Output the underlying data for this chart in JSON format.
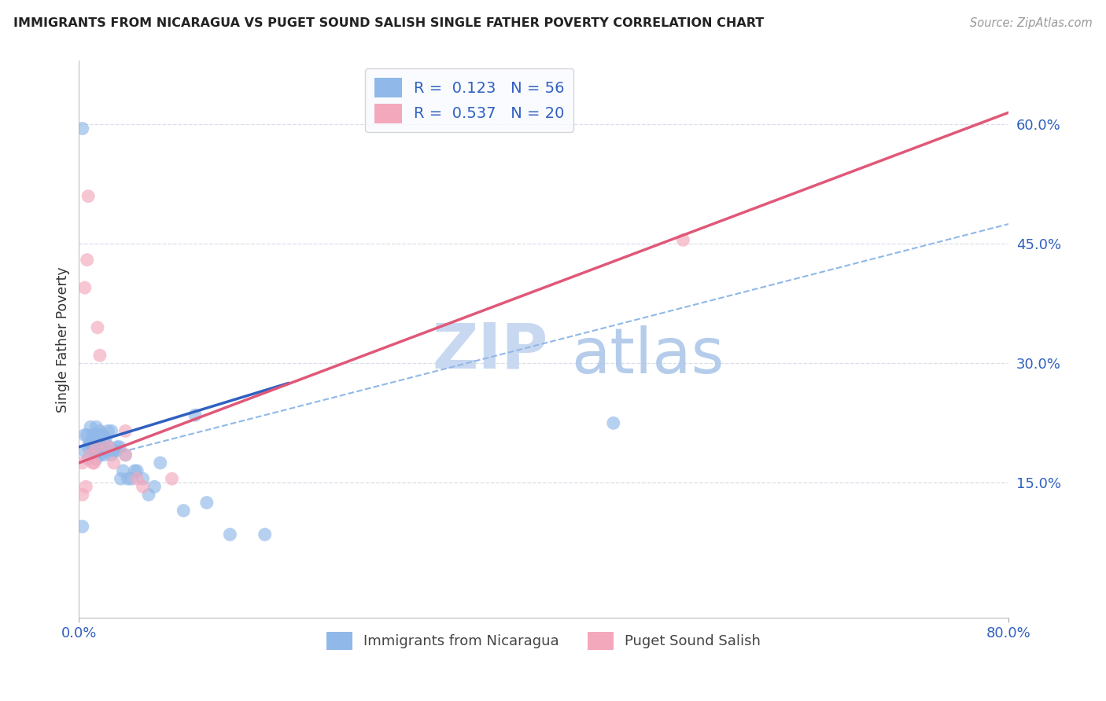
{
  "title": "IMMIGRANTS FROM NICARAGUA VS PUGET SOUND SALISH SINGLE FATHER POVERTY CORRELATION CHART",
  "source": "Source: ZipAtlas.com",
  "ylabel": "Single Father Poverty",
  "xlim": [
    0,
    0.8
  ],
  "ylim": [
    -0.02,
    0.68
  ],
  "xticks": [
    0.0,
    0.8
  ],
  "xticklabels": [
    "0.0%",
    "80.0%"
  ],
  "yticks": [
    0.15,
    0.3,
    0.45,
    0.6
  ],
  "yticklabels": [
    "15.0%",
    "30.0%",
    "45.0%",
    "60.0%"
  ],
  "legend_r1": "R =  0.123",
  "legend_n1": "N = 56",
  "legend_r2": "R =  0.537",
  "legend_n2": "N = 20",
  "blue_color": "#90b8e8",
  "pink_color": "#f4a8bc",
  "blue_line_color": "#3060c0",
  "pink_line_color": "#e05878",
  "dashed_line_color": "#90b8e8",
  "watermark_zip_color": "#c8d8f0",
  "watermark_atlas_color": "#a8c4e8",
  "blue_scatter_x": [
    0.003,
    0.005,
    0.005,
    0.007,
    0.008,
    0.008,
    0.009,
    0.01,
    0.01,
    0.012,
    0.012,
    0.013,
    0.013,
    0.015,
    0.015,
    0.015,
    0.015,
    0.016,
    0.017,
    0.017,
    0.018,
    0.018,
    0.018,
    0.019,
    0.019,
    0.02,
    0.02,
    0.022,
    0.022,
    0.023,
    0.025,
    0.026,
    0.028,
    0.028,
    0.03,
    0.032,
    0.033,
    0.035,
    0.036,
    0.038,
    0.04,
    0.042,
    0.045,
    0.048,
    0.05,
    0.055,
    0.06,
    0.065,
    0.07,
    0.09,
    0.1,
    0.11,
    0.13,
    0.16,
    0.46,
    0.003
  ],
  "blue_scatter_y": [
    0.595,
    0.21,
    0.19,
    0.21,
    0.195,
    0.18,
    0.2,
    0.22,
    0.2,
    0.21,
    0.195,
    0.19,
    0.21,
    0.22,
    0.21,
    0.19,
    0.18,
    0.2,
    0.21,
    0.19,
    0.215,
    0.2,
    0.185,
    0.205,
    0.195,
    0.19,
    0.21,
    0.2,
    0.185,
    0.205,
    0.215,
    0.195,
    0.215,
    0.185,
    0.19,
    0.19,
    0.195,
    0.195,
    0.155,
    0.165,
    0.185,
    0.155,
    0.155,
    0.165,
    0.165,
    0.155,
    0.135,
    0.145,
    0.175,
    0.115,
    0.235,
    0.125,
    0.085,
    0.085,
    0.225,
    0.095
  ],
  "pink_scatter_x": [
    0.003,
    0.005,
    0.007,
    0.008,
    0.01,
    0.012,
    0.013,
    0.015,
    0.016,
    0.018,
    0.025,
    0.03,
    0.04,
    0.04,
    0.05,
    0.055,
    0.08,
    0.52,
    0.003,
    0.006
  ],
  "pink_scatter_y": [
    0.175,
    0.395,
    0.43,
    0.51,
    0.185,
    0.175,
    0.175,
    0.195,
    0.345,
    0.31,
    0.195,
    0.175,
    0.215,
    0.185,
    0.155,
    0.145,
    0.155,
    0.455,
    0.135,
    0.145
  ],
  "blue_line_x": [
    0.0,
    0.18
  ],
  "blue_line_y": [
    0.195,
    0.275
  ],
  "pink_line_x": [
    0.0,
    0.8
  ],
  "pink_line_y": [
    0.175,
    0.615
  ],
  "dashed_line_x": [
    0.0,
    0.8
  ],
  "dashed_line_y": [
    0.175,
    0.475
  ],
  "title_color": "#222222",
  "tick_label_color": "#3060c0",
  "grid_color": "#d8dfe8",
  "legend_box_color": "#f8faff",
  "bottom_legend_color": "#444444"
}
